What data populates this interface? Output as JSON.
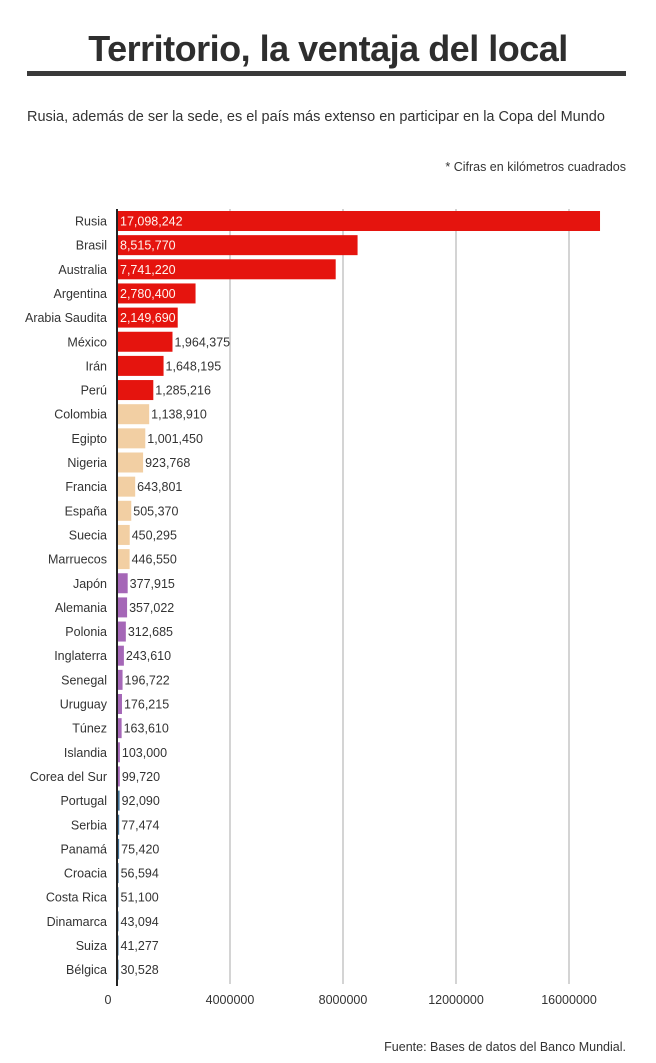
{
  "title": "Territorio, la ventaja del local",
  "subtitle": "Rusia, además de ser la sede, es el país más extenso en participar en la Copa del Mundo",
  "units_note": "* Cifras en kilómetros cuadrados",
  "source": "Fuente: Bases de datos del Banco Mundial.",
  "colors": {
    "red": "#e5140e",
    "peach": "#f2cfa3",
    "purple": "#a567b7",
    "blue": "#3f6f95",
    "grid": "#a8a8a8",
    "axis": "#222222"
  },
  "chart_data": {
    "type": "bar",
    "orientation": "horizontal",
    "categories": [
      "Rusia",
      "Brasil",
      "Australia",
      "Argentina",
      "Arabia Saudita",
      "México",
      "Irán",
      "Perú",
      "Colombia",
      "Egipto",
      "Nigeria",
      "Francia",
      "España",
      "Suecia",
      "Marruecos",
      "Japón",
      "Alemania",
      "Polonia",
      "Inglaterra",
      "Senegal",
      "Uruguay",
      "Túnez",
      "Islandia",
      "Corea del Sur",
      "Portugal",
      "Serbia",
      "Panamá",
      "Croacia",
      "Costa Rica",
      "Dinamarca",
      "Suiza",
      "Bélgica"
    ],
    "values": [
      17098242,
      8515770,
      7741220,
      2780400,
      2149690,
      1964375,
      1648195,
      1285216,
      1138910,
      1001450,
      923768,
      643801,
      505370,
      450295,
      446550,
      377915,
      357022,
      312685,
      243610,
      196722,
      176215,
      163610,
      103000,
      99720,
      92090,
      77474,
      75420,
      56594,
      51100,
      43094,
      41277,
      30528
    ],
    "value_labels": [
      "17,098,242",
      "8,515,770",
      "7,741,220",
      "2,780,400",
      "2,149,690",
      "1,964,375",
      "1,648,195",
      "1,285,216",
      "1,138,910",
      "1,001,450",
      "923,768",
      "643,801",
      "505,370",
      "450,295",
      "446,550",
      "377,915",
      "357,022",
      "312,685",
      "243,610",
      "196,722",
      "176,215",
      "163,610",
      "103,000",
      "99,720",
      "92,090",
      "77,474",
      "75,420",
      "56,594",
      "51,100",
      "43,094",
      "41,277",
      "30,528"
    ],
    "bar_colors": [
      "red",
      "red",
      "red",
      "red",
      "red",
      "red",
      "red",
      "red",
      "peach",
      "peach",
      "peach",
      "peach",
      "peach",
      "peach",
      "peach",
      "purple",
      "purple",
      "purple",
      "purple",
      "purple",
      "purple",
      "purple",
      "purple",
      "purple",
      "blue",
      "blue",
      "blue",
      "blue",
      "blue",
      "blue",
      "blue",
      "blue"
    ],
    "xlim": [
      0,
      17500000
    ],
    "x_ticks": [
      0,
      4000000,
      8000000,
      12000000,
      16000000
    ],
    "x_tick_labels": [
      "0",
      "4000000",
      "8000000",
      "12000000",
      "16000000"
    ],
    "grid": true,
    "legend": "none"
  }
}
